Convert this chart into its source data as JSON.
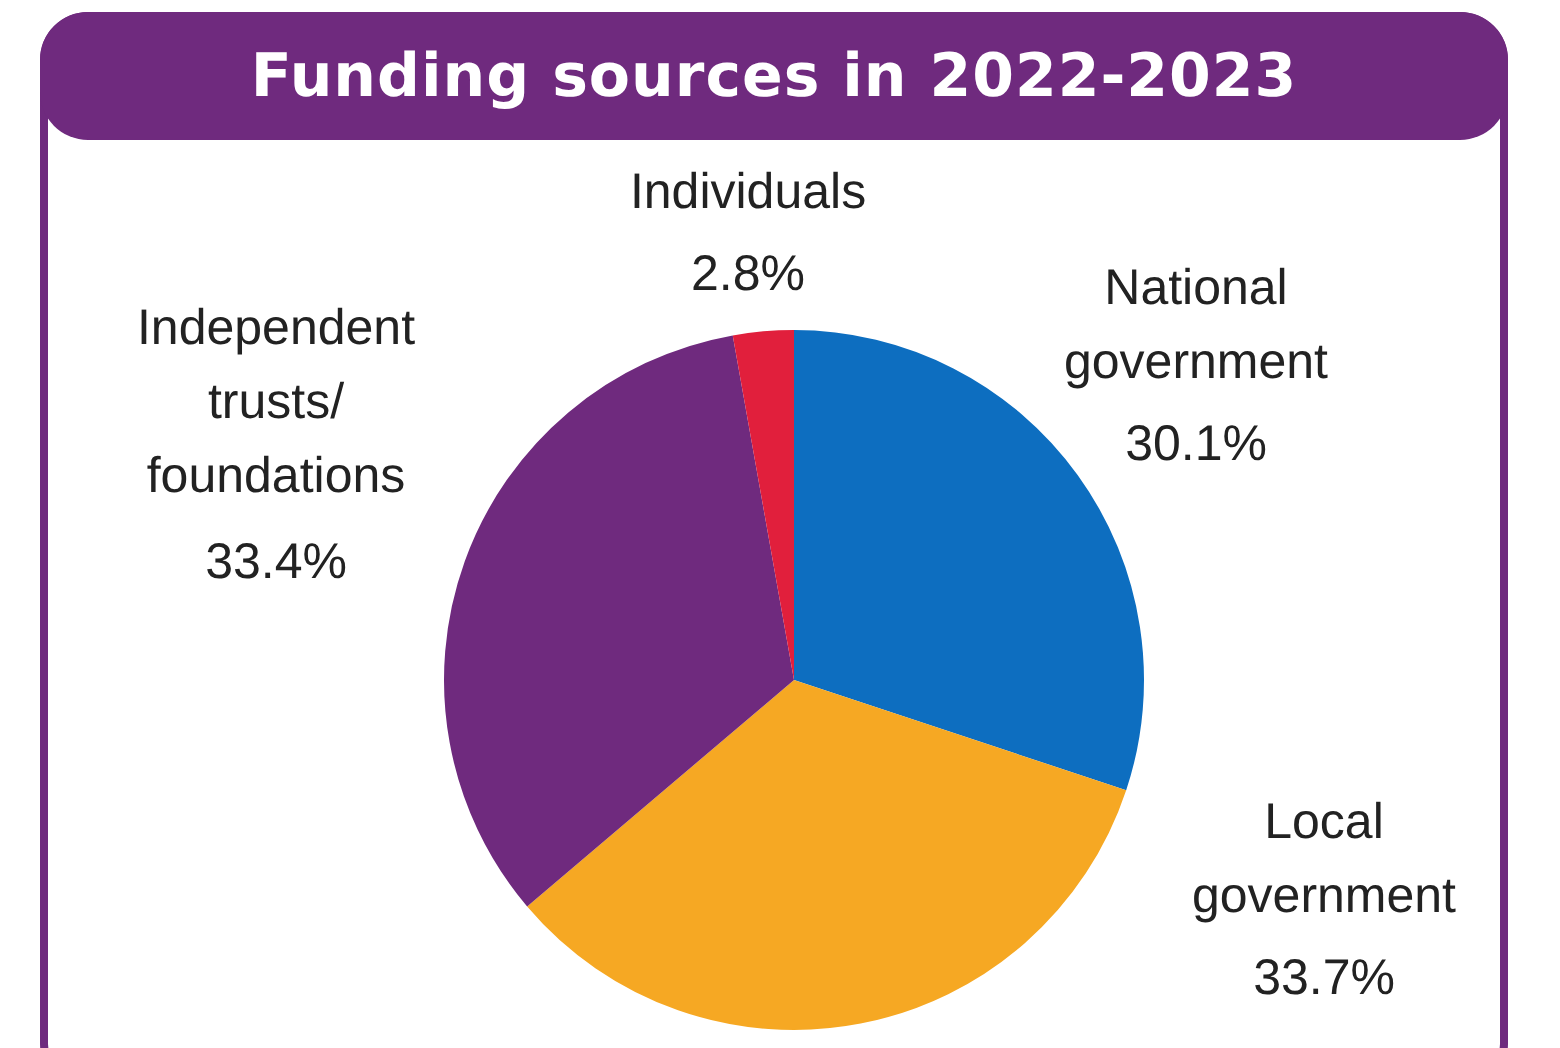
{
  "chart_data": {
    "type": "pie",
    "title": "Funding sources in 2022-2023",
    "categories": [
      "National government",
      "Local government",
      "Independent trusts/ foundations",
      "Individuals"
    ],
    "values": [
      30.1,
      33.7,
      33.4,
      2.8
    ],
    "colors": [
      "#0d6ec0",
      "#f6a823",
      "#6f2a7e",
      "#e11f3c"
    ],
    "value_labels": [
      "30.1%",
      "33.7%",
      "33.4%",
      "2.8%"
    ],
    "legend": false
  }
}
